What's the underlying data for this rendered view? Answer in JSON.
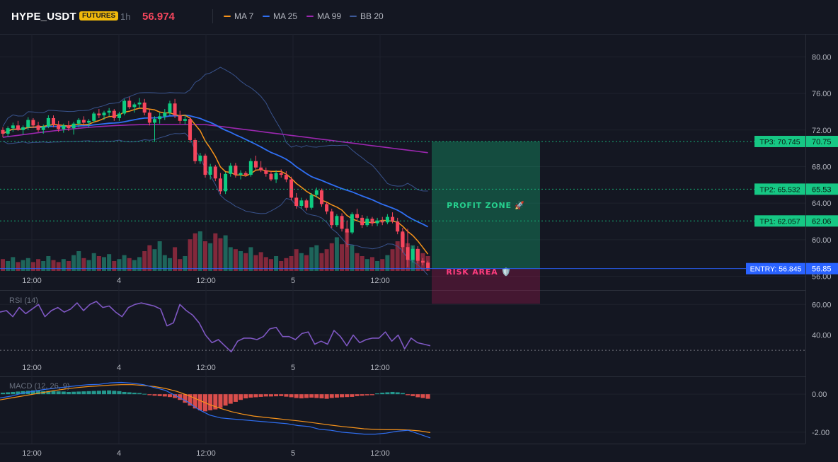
{
  "header": {
    "symbol": "HYPE_USDT",
    "badge": "FUTURES",
    "timeframe": "1h",
    "price": "56.974",
    "legend": [
      {
        "label": "MA 7",
        "color": "#f7931a"
      },
      {
        "label": "MA 25",
        "color": "#2f6ff3"
      },
      {
        "label": "MA 99",
        "color": "#9c27b0"
      },
      {
        "label": "BB 20",
        "color": "#3d5a99"
      }
    ]
  },
  "chart_data": [
    {
      "type": "candlestick",
      "title": "HYPE_USDT",
      "x_ticks": [
        "12:00",
        "4",
        "12:00",
        "5",
        "12:00"
      ],
      "y_ticks": [
        "56.00",
        "60.00",
        "64.00",
        "68.00",
        "72.00",
        "76.00",
        "80.00"
      ],
      "ylim": [
        54.5,
        82.5
      ],
      "ohlc": [
        [
          72.0,
          72.3,
          71.2,
          71.6
        ],
        [
          71.6,
          72.4,
          71.3,
          72.2
        ],
        [
          72.2,
          72.8,
          71.8,
          72.5
        ],
        [
          72.5,
          73.0,
          71.9,
          72.0
        ],
        [
          72.0,
          72.5,
          71.5,
          72.3
        ],
        [
          72.3,
          73.4,
          72.0,
          73.1
        ],
        [
          73.1,
          73.3,
          72.2,
          72.5
        ],
        [
          72.5,
          72.9,
          71.8,
          72.0
        ],
        [
          72.0,
          72.6,
          71.6,
          72.4
        ],
        [
          72.4,
          73.6,
          72.2,
          73.3
        ],
        [
          73.3,
          73.6,
          72.3,
          72.6
        ],
        [
          72.6,
          73.0,
          71.8,
          72.1
        ],
        [
          72.1,
          72.7,
          71.7,
          72.5
        ],
        [
          72.5,
          73.0,
          71.9,
          72.2
        ],
        [
          72.2,
          72.9,
          71.5,
          72.7
        ],
        [
          72.7,
          73.3,
          72.3,
          73.1
        ],
        [
          73.1,
          73.5,
          72.6,
          72.8
        ],
        [
          72.8,
          73.2,
          72.3,
          73.0
        ],
        [
          73.0,
          74.0,
          72.8,
          73.8
        ],
        [
          73.8,
          74.3,
          73.3,
          73.6
        ],
        [
          73.6,
          74.1,
          73.1,
          73.9
        ],
        [
          73.9,
          74.4,
          73.5,
          74.1
        ],
        [
          74.1,
          74.3,
          73.0,
          73.3
        ],
        [
          73.3,
          74.0,
          73.0,
          73.8
        ],
        [
          73.8,
          75.4,
          73.6,
          75.2
        ],
        [
          75.2,
          75.6,
          74.3,
          74.5
        ],
        [
          74.5,
          75.0,
          73.9,
          74.8
        ],
        [
          74.8,
          75.5,
          74.4,
          75.0
        ],
        [
          75.0,
          75.4,
          73.6,
          73.9
        ],
        [
          73.9,
          74.3,
          72.5,
          72.8
        ],
        [
          72.8,
          73.5,
          70.7,
          73.2
        ],
        [
          73.2,
          73.9,
          72.7,
          73.5
        ],
        [
          73.5,
          74.3,
          73.1,
          73.9
        ],
        [
          73.9,
          75.2,
          73.6,
          74.9
        ],
        [
          74.9,
          75.4,
          73.3,
          73.6
        ],
        [
          73.6,
          74.1,
          72.7,
          73.0
        ],
        [
          73.0,
          73.6,
          72.6,
          73.2
        ],
        [
          73.2,
          73.4,
          70.6,
          70.9
        ],
        [
          70.9,
          71.1,
          68.3,
          68.6
        ],
        [
          68.6,
          69.5,
          68.3,
          69.2
        ],
        [
          69.2,
          69.4,
          66.8,
          67.1
        ],
        [
          67.1,
          68.3,
          66.6,
          68.0
        ],
        [
          68.0,
          68.2,
          66.4,
          66.7
        ],
        [
          66.7,
          67.3,
          65.0,
          65.3
        ],
        [
          65.3,
          67.4,
          65.0,
          67.2
        ],
        [
          67.2,
          68.4,
          66.9,
          68.1
        ],
        [
          68.1,
          68.4,
          66.8,
          67.1
        ],
        [
          67.1,
          67.6,
          66.6,
          67.3
        ],
        [
          67.3,
          67.5,
          66.9,
          67.1
        ],
        [
          67.1,
          68.9,
          66.9,
          68.6
        ],
        [
          68.6,
          69.2,
          67.6,
          67.9
        ],
        [
          67.9,
          68.6,
          67.4,
          67.6
        ],
        [
          67.6,
          67.9,
          66.9,
          67.2
        ],
        [
          67.2,
          67.5,
          66.4,
          66.6
        ],
        [
          66.6,
          67.6,
          66.2,
          67.3
        ],
        [
          67.3,
          67.7,
          66.8,
          67.1
        ],
        [
          67.1,
          67.5,
          66.3,
          66.6
        ],
        [
          66.6,
          66.9,
          64.3,
          64.6
        ],
        [
          64.6,
          65.1,
          63.4,
          63.7
        ],
        [
          63.7,
          64.6,
          63.4,
          64.3
        ],
        [
          64.3,
          64.5,
          63.2,
          63.5
        ],
        [
          63.5,
          65.1,
          63.3,
          64.9
        ],
        [
          64.9,
          65.7,
          64.6,
          65.4
        ],
        [
          65.4,
          65.6,
          63.6,
          63.9
        ],
        [
          63.9,
          64.1,
          62.8,
          63.1
        ],
        [
          63.1,
          63.4,
          61.3,
          61.6
        ],
        [
          61.6,
          62.8,
          61.4,
          62.6
        ],
        [
          62.6,
          62.9,
          60.9,
          61.2
        ],
        [
          61.2,
          62.1,
          59.2,
          60.8
        ],
        [
          60.8,
          63.0,
          60.6,
          62.8
        ],
        [
          62.8,
          63.4,
          62.1,
          62.4
        ],
        [
          62.4,
          62.7,
          61.3,
          61.6
        ],
        [
          61.6,
          62.6,
          61.4,
          62.3
        ],
        [
          62.3,
          62.5,
          61.5,
          61.8
        ],
        [
          61.8,
          62.4,
          61.5,
          62.1
        ],
        [
          62.1,
          62.5,
          61.6,
          61.9
        ],
        [
          61.9,
          62.8,
          61.7,
          62.5
        ],
        [
          62.5,
          63.0,
          61.8,
          62.0
        ],
        [
          62.0,
          62.4,
          60.6,
          60.9
        ],
        [
          60.9,
          61.3,
          58.6,
          59.2
        ],
        [
          59.2,
          61.2,
          57.0,
          57.8
        ],
        [
          57.8,
          59.3,
          57.5,
          59.0
        ],
        [
          59.0,
          59.3,
          57.4,
          57.7
        ],
        [
          57.7,
          58.0,
          57.2,
          57.5
        ],
        [
          57.5,
          57.7,
          56.6,
          56.9
        ]
      ],
      "volume": [
        12,
        10,
        14,
        9,
        11,
        13,
        9,
        12,
        10,
        15,
        11,
        9,
        12,
        10,
        16,
        20,
        13,
        11,
        18,
        15,
        14,
        17,
        10,
        12,
        16,
        13,
        11,
        14,
        20,
        26,
        22,
        30,
        16,
        13,
        24,
        12,
        15,
        32,
        38,
        40,
        30,
        28,
        38,
        33,
        36,
        24,
        22,
        20,
        18,
        24,
        16,
        19,
        14,
        12,
        15,
        10,
        13,
        15,
        22,
        18,
        16,
        24,
        26,
        18,
        22,
        28,
        34,
        27,
        40,
        26,
        18,
        15,
        12,
        14,
        10,
        12,
        16,
        22,
        30,
        38,
        28,
        26,
        22,
        18,
        15
      ],
      "levels": [
        {
          "label": "TP3: 70.745",
          "axis_label": "70.75",
          "value": 70.745,
          "color": "#16c784"
        },
        {
          "label": "TP2: 65.532",
          "axis_label": "65.53",
          "value": 65.532,
          "color": "#16c784"
        },
        {
          "label": "TP1: 62.057",
          "axis_label": "62.06",
          "value": 62.057,
          "color": "#16c784"
        },
        {
          "label": "ENTRY: 56.845",
          "axis_label": "56.85",
          "value": 56.845,
          "color": "#2962ff"
        }
      ],
      "zones": [
        {
          "label": "PROFIT ZONE 🚀",
          "from": 56.845,
          "to": 70.745,
          "color": "#16c784"
        },
        {
          "label": "RISK AREA 🛡️",
          "from": 53.0,
          "to": 56.845,
          "color": "#c2185b"
        }
      ]
    },
    {
      "type": "line",
      "title": "RSI (14)",
      "y_ticks": [
        "40.00",
        "60.00"
      ],
      "ylim": [
        25,
        68
      ],
      "reference": 30,
      "values": [
        55,
        56,
        52,
        58,
        54,
        57,
        60,
        52,
        56,
        58,
        55,
        57,
        61,
        56,
        60,
        62,
        58,
        59,
        55,
        52,
        58,
        60,
        61,
        60,
        59,
        57,
        46,
        48,
        60,
        56,
        53,
        48,
        40,
        35,
        37,
        33,
        29,
        36,
        38,
        38,
        37,
        39,
        44,
        45,
        39,
        39,
        37,
        41,
        42,
        34,
        36,
        34,
        43,
        39,
        33,
        40,
        35,
        37,
        38,
        38,
        42,
        36,
        40,
        31,
        38,
        35,
        34,
        33
      ]
    },
    {
      "type": "bar",
      "title": "MACD (12, 26, 9)",
      "y_ticks": [
        "0.00",
        "-2.00"
      ],
      "ylim": [
        -2.6,
        0.9
      ],
      "histogram": [
        0.08,
        0.1,
        0.12,
        0.14,
        0.16,
        0.18,
        0.2,
        0.18,
        0.16,
        0.17,
        0.16,
        0.15,
        0.14,
        0.12,
        0.13,
        0.14,
        0.15,
        0.16,
        0.17,
        0.18,
        0.19,
        0.2,
        0.18,
        0.16,
        0.12,
        0.1,
        0.08,
        0.06,
        0.02,
        -0.05,
        -0.08,
        -0.1,
        -0.12,
        -0.15,
        -0.2,
        -0.3,
        -0.45,
        -0.6,
        -0.75,
        -0.85,
        -0.9,
        -0.85,
        -0.8,
        -0.72,
        -0.6,
        -0.5,
        -0.4,
        -0.3,
        -0.22,
        -0.18,
        -0.16,
        -0.14,
        -0.12,
        -0.12,
        -0.11,
        -0.1,
        -0.13,
        -0.16,
        -0.2,
        -0.22,
        -0.2,
        -0.18,
        -0.2,
        -0.22,
        -0.24,
        -0.2,
        -0.18,
        -0.16,
        -0.15,
        -0.14,
        -0.1,
        -0.08,
        -0.06,
        -0.05,
        0.04,
        0.08,
        0.1,
        0.12,
        0.1,
        0.06,
        -0.05,
        -0.1,
        -0.16,
        -0.2,
        -0.24
      ],
      "macd": [
        -0.2,
        -0.1,
        0.05,
        0.15,
        0.25,
        0.32,
        0.38,
        0.45,
        0.5,
        0.52,
        0.6,
        0.62,
        0.58,
        0.5,
        0.35,
        0.2,
        -0.1,
        -0.4,
        -0.8,
        -1.1,
        -1.25,
        -1.3,
        -1.35,
        -1.4,
        -1.45,
        -1.5,
        -1.55,
        -1.65,
        -1.7,
        -1.85,
        -1.9,
        -2.0,
        -2.05,
        -2.1,
        -2.1,
        -2.05,
        -1.95,
        -1.9,
        -2.1,
        -2.3
      ],
      "signal": [
        -0.3,
        -0.2,
        -0.1,
        0.0,
        0.1,
        0.2,
        0.28,
        0.35,
        0.4,
        0.44,
        0.48,
        0.5,
        0.5,
        0.46,
        0.4,
        0.3,
        0.15,
        -0.05,
        -0.3,
        -0.55,
        -0.75,
        -0.92,
        -1.05,
        -1.15,
        -1.22,
        -1.28,
        -1.34,
        -1.4,
        -1.47,
        -1.55,
        -1.63,
        -1.7,
        -1.76,
        -1.82,
        -1.85,
        -1.87,
        -1.87,
        -1.88,
        -1.93,
        -2.02
      ]
    }
  ]
}
